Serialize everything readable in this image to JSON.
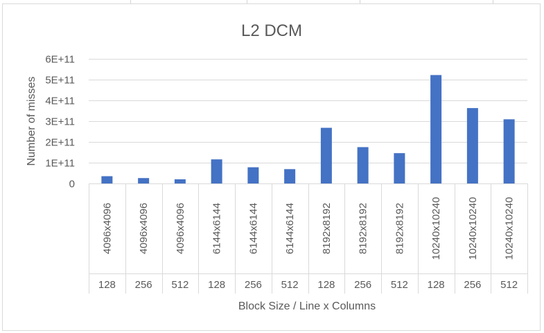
{
  "chart_data": {
    "type": "bar",
    "title": "L2 DCM",
    "ylabel": "Number of misses",
    "xlabel": "Block Size / Line x Columns",
    "ylim": [
      0,
      600000000000
    ],
    "yticks": [
      "0",
      "1E+11",
      "2E+11",
      "3E+11",
      "4E+11",
      "5E+11",
      "6E+11"
    ],
    "ytick_values": [
      0,
      100000000000,
      200000000000,
      300000000000,
      400000000000,
      500000000000,
      600000000000
    ],
    "grid": true,
    "legend": "none",
    "bar_color": "#4472C4",
    "categories_outer": [
      "4096x4096",
      "4096x4096",
      "4096x4096",
      "6144x6144",
      "6144x6144",
      "6144x6144",
      "8192x8192",
      "8192x8192",
      "8192x8192",
      "10240x10240",
      "10240x10240",
      "10240x10240"
    ],
    "categories_inner": [
      "128",
      "256",
      "512",
      "128",
      "256",
      "512",
      "128",
      "256",
      "512",
      "128",
      "256",
      "512"
    ],
    "values": [
      35000000000,
      26000000000,
      20000000000,
      116000000000,
      78000000000,
      69000000000,
      268000000000,
      175000000000,
      146000000000,
      522000000000,
      363000000000,
      309000000000
    ]
  }
}
